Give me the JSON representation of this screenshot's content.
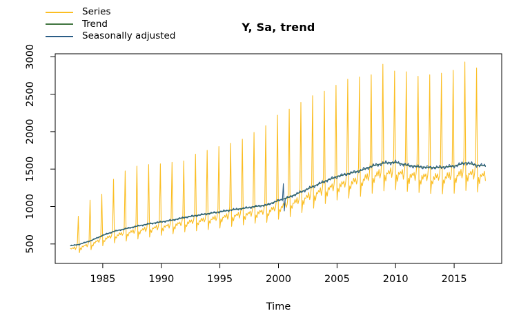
{
  "figure": {
    "title": "Y, Sa, trend",
    "xlabel": "Time"
  },
  "legend": {
    "items": [
      {
        "label": "Series",
        "color": "#FBBE23"
      },
      {
        "label": "Trend",
        "color": "#41753F"
      },
      {
        "label": "Seasonally adjusted",
        "color": "#2B5D86"
      }
    ]
  },
  "chart_data": {
    "type": "line",
    "title": "Y, Sa, trend",
    "xlabel": "Time",
    "ylabel": "",
    "legend_position": "top-left",
    "grid": false,
    "frequency": "monthly",
    "start": 1982.25,
    "end": 2017.667,
    "x_ticks": [
      1985,
      1990,
      1995,
      2000,
      2005,
      2010,
      2015
    ],
    "y_ticks": [
      500,
      1000,
      1500,
      2000,
      2500,
      3000
    ],
    "x_range": [
      1980.94,
      2019.06
    ],
    "y_range": [
      240,
      3040
    ],
    "series": [
      {
        "name": "Series",
        "color": "#FBBE23",
        "width": 1.1
      },
      {
        "name": "Trend",
        "color": "#41753F",
        "width": 1.4
      },
      {
        "name": "Seasonally adjusted",
        "color": "#2B5D86",
        "width": 1.1
      }
    ],
    "trend_anchors": {
      "years": [
        1982,
        1983,
        1984,
        1985,
        1986,
        1987,
        1988,
        1989,
        1990,
        1991,
        1992,
        1993,
        1994,
        1995,
        1996,
        1997,
        1998,
        1999,
        2000,
        2001,
        2002,
        2003,
        2004,
        2005,
        2006,
        2007,
        2008,
        2009,
        2010,
        2011,
        2012,
        2013,
        2014,
        2015,
        2016,
        2017,
        2018
      ],
      "values": [
        470,
        495,
        545,
        615,
        670,
        705,
        740,
        770,
        795,
        820,
        855,
        880,
        905,
        930,
        955,
        975,
        1000,
        1020,
        1080,
        1130,
        1200,
        1270,
        1340,
        1400,
        1440,
        1480,
        1540,
        1580,
        1590,
        1550,
        1530,
        1520,
        1525,
        1540,
        1585,
        1550,
        1540
      ]
    },
    "dec_peaks": {
      "years": [
        1982,
        1983,
        1984,
        1985,
        1986,
        1987,
        1988,
        1989,
        1990,
        1991,
        1992,
        1993,
        1994,
        1995,
        1996,
        1997,
        1998,
        1999,
        2000,
        2001,
        2002,
        2003,
        2004,
        2005,
        2006,
        2007,
        2008,
        2009,
        2010,
        2011,
        2012,
        2013,
        2014,
        2015,
        2016
      ],
      "values": [
        870,
        1085,
        1165,
        1365,
        1475,
        1540,
        1560,
        1570,
        1590,
        1610,
        1700,
        1750,
        1800,
        1845,
        1900,
        1990,
        2080,
        2220,
        2300,
        2390,
        2480,
        2540,
        2620,
        2700,
        2730,
        2760,
        2900,
        2810,
        2800,
        2740,
        2760,
        2780,
        2820,
        2930,
        2850
      ]
    },
    "seasonal_profile": [
      0.77,
      0.89,
      0.85,
      0.92,
      0.9,
      0.94,
      0.91,
      0.95,
      0.88,
      0.93,
      1.04,
      1.85
    ],
    "sa_anomalies": [
      {
        "t": 2000.417,
        "delta": 205
      },
      {
        "t": 2000.5,
        "delta": -165
      }
    ]
  }
}
